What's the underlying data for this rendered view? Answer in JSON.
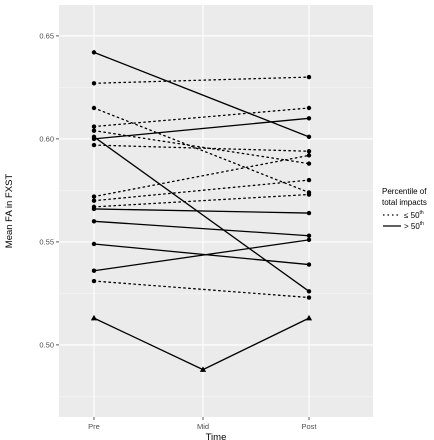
{
  "chart_data": {
    "type": "line",
    "title": "",
    "xlabel": "Time",
    "ylabel": "Mean FA in FXST",
    "categories": [
      "Pre",
      "Mid",
      "Post"
    ],
    "ylim": [
      0.465,
      0.665
    ],
    "yticks": [
      0.5,
      0.55,
      0.6,
      0.65
    ],
    "ytick_labels": [
      "0.50",
      "0.55",
      "0.60",
      "0.65"
    ],
    "grid": true,
    "background": "#ebebeb",
    "legend": {
      "placement": "right",
      "title_lines": [
        "Percentile of",
        "total impacts"
      ],
      "entries": [
        {
          "linetype": "dotted",
          "label": "≤ 50",
          "sup": "th"
        },
        {
          "linetype": "solid",
          "label": "> 50",
          "sup": "th"
        }
      ]
    },
    "series": [
      {
        "group": "above",
        "linetype": "solid",
        "marker": "circle",
        "points": [
          [
            0,
            0.642
          ],
          [
            2,
            0.601
          ]
        ]
      },
      {
        "group": "above",
        "linetype": "solid",
        "marker": "circle",
        "points": [
          [
            0,
            0.6
          ],
          [
            2,
            0.61
          ]
        ]
      },
      {
        "group": "above",
        "linetype": "solid",
        "marker": "circle",
        "points": [
          [
            0,
            0.601
          ],
          [
            2,
            0.526
          ]
        ]
      },
      {
        "group": "above",
        "linetype": "solid",
        "marker": "circle",
        "points": [
          [
            0,
            0.566
          ],
          [
            2,
            0.564
          ]
        ]
      },
      {
        "group": "above",
        "linetype": "solid",
        "marker": "circle",
        "points": [
          [
            0,
            0.56
          ],
          [
            2,
            0.553
          ]
        ]
      },
      {
        "group": "above",
        "linetype": "solid",
        "marker": "circle",
        "points": [
          [
            0,
            0.549
          ],
          [
            2,
            0.539
          ]
        ]
      },
      {
        "group": "above",
        "linetype": "solid",
        "marker": "circle",
        "points": [
          [
            0,
            0.536
          ],
          [
            2,
            0.551
          ]
        ]
      },
      {
        "group": "above",
        "linetype": "solid",
        "marker": "triangle",
        "points": [
          [
            0,
            0.513
          ],
          [
            1,
            0.488
          ],
          [
            2,
            0.513
          ]
        ]
      },
      {
        "group": "below",
        "linetype": "dotted",
        "marker": "circle",
        "points": [
          [
            0,
            0.627
          ],
          [
            2,
            0.63
          ]
        ]
      },
      {
        "group": "below",
        "linetype": "dotted",
        "marker": "circle",
        "points": [
          [
            0,
            0.615
          ],
          [
            2,
            0.574
          ]
        ]
      },
      {
        "group": "below",
        "linetype": "dotted",
        "marker": "circle",
        "points": [
          [
            0,
            0.606
          ],
          [
            2,
            0.615
          ]
        ]
      },
      {
        "group": "below",
        "linetype": "dotted",
        "marker": "circle",
        "points": [
          [
            0,
            0.604
          ],
          [
            2,
            0.588
          ]
        ]
      },
      {
        "group": "below",
        "linetype": "dotted",
        "marker": "circle",
        "points": [
          [
            0,
            0.597
          ],
          [
            2,
            0.594
          ]
        ]
      },
      {
        "group": "below",
        "linetype": "dotted",
        "marker": "circle",
        "points": [
          [
            0,
            0.572
          ],
          [
            2,
            0.592
          ]
        ]
      },
      {
        "group": "below",
        "linetype": "dotted",
        "marker": "circle",
        "points": [
          [
            0,
            0.57
          ],
          [
            2,
            0.58
          ]
        ]
      },
      {
        "group": "below",
        "linetype": "dotted",
        "marker": "circle",
        "points": [
          [
            0,
            0.567
          ],
          [
            2,
            0.573
          ]
        ]
      },
      {
        "group": "below",
        "linetype": "dotted",
        "marker": "circle",
        "points": [
          [
            0,
            0.531
          ],
          [
            2,
            0.523
          ]
        ]
      }
    ]
  }
}
